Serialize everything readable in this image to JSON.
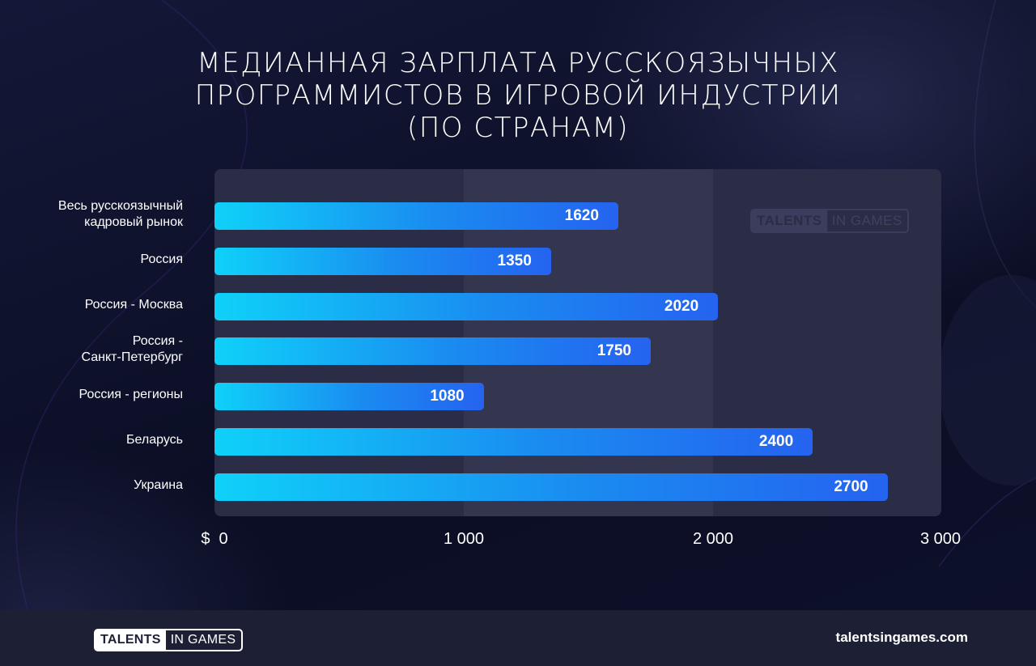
{
  "title_lines": [
    "МЕДИАННАЯ ЗАРПЛАТА РУССКОЯЗЫЧНЫХ",
    "ПРОГРАММИСТОВ В ИГРОВОЙ ИНДУСТРИИ",
    "(ПО СТРАНАМ)"
  ],
  "watermark": {
    "part1": "TALENTS",
    "part2": "IN GAMES"
  },
  "footer": {
    "logo_part1": "TALENTS",
    "logo_part2": "IN GAMES",
    "site": "talentsingames.com"
  },
  "colors": {
    "background": "#0d1029",
    "bar_start": "#0fd1f9",
    "bar_end": "#2563f0",
    "band_light": "#343650",
    "band_dark": "#2b2d46"
  },
  "chart_data": {
    "type": "bar",
    "orientation": "horizontal",
    "title": "МЕДИАННАЯ ЗАРПЛАТА РУССКОЯЗЫЧНЫХ ПРОГРАММИСТОВ В ИГРОВОЙ ИНДУСТРИИ (ПО СТРАНАМ)",
    "categories": [
      [
        "Весь русскоязычный",
        "кадровый рынок"
      ],
      [
        "Россия"
      ],
      [
        "Россия - Москва"
      ],
      [
        "Россия -",
        "Санкт-Петербург"
      ],
      [
        "Россия - регионы"
      ],
      [
        "Беларусь"
      ],
      [
        "Украина"
      ]
    ],
    "values": [
      1620,
      1350,
      2020,
      1750,
      1080,
      2400,
      2700
    ],
    "value_labels": [
      "1620",
      "1350",
      "2020",
      "1750",
      "1080",
      "2400",
      "2700"
    ],
    "xlim": [
      0,
      3000
    ],
    "x_ticks": [
      0,
      1000,
      2000,
      3000
    ],
    "x_tick_labels": [
      "$  0",
      "1 000",
      "2 000",
      "3 000"
    ],
    "xlabel": "",
    "ylabel": ""
  }
}
